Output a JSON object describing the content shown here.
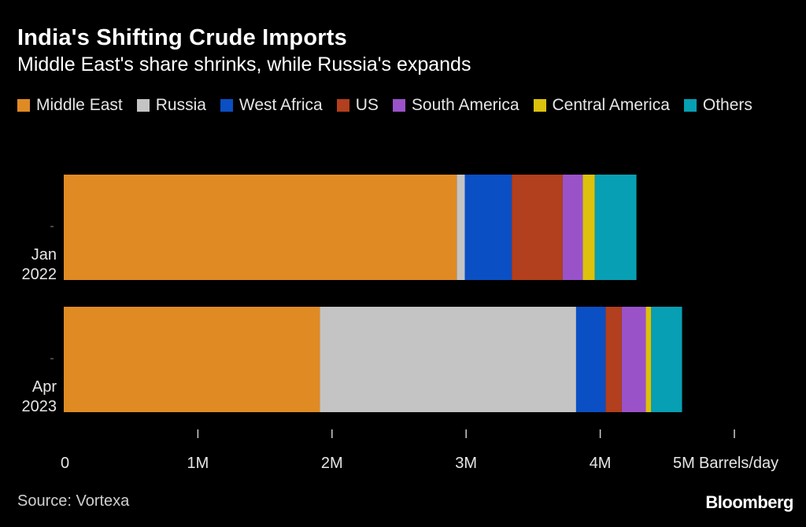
{
  "title": "India's Shifting Crude Imports",
  "subtitle": "Middle East's share shrinks, while Russia's expands",
  "legend": [
    {
      "name": "Middle East",
      "color": "#e08a24"
    },
    {
      "name": "Russia",
      "color": "#c4c4c4"
    },
    {
      "name": "West Africa",
      "color": "#0a4fc4"
    },
    {
      "name": "US",
      "color": "#b23f1d"
    },
    {
      "name": "South America",
      "color": "#9a52c9"
    },
    {
      "name": "Central America",
      "color": "#dcc20c"
    },
    {
      "name": "Others",
      "color": "#079fb3"
    }
  ],
  "source": "Source: Vortexa",
  "logo": "Bloomberg",
  "chart_data": {
    "type": "bar",
    "orientation": "horizontal",
    "stacked": true,
    "categories": [
      {
        "line1": "Jan",
        "line2": "2022"
      },
      {
        "line1": "Apr",
        "line2": "2023"
      }
    ],
    "series": [
      {
        "name": "Middle East",
        "color": "#e08a24",
        "values": [
          2.93,
          1.91
        ]
      },
      {
        "name": "Russia",
        "color": "#c4c4c4",
        "values": [
          0.06,
          1.91
        ]
      },
      {
        "name": "West Africa",
        "color": "#0a4fc4",
        "values": [
          0.35,
          0.22
        ]
      },
      {
        "name": "US",
        "color": "#b23f1d",
        "values": [
          0.38,
          0.12
        ]
      },
      {
        "name": "South America",
        "color": "#9a52c9",
        "values": [
          0.15,
          0.18
        ]
      },
      {
        "name": "Central America",
        "color": "#dcc20c",
        "values": [
          0.09,
          0.04
        ]
      },
      {
        "name": "Others",
        "color": "#079fb3",
        "values": [
          0.31,
          0.23
        ]
      }
    ],
    "xlim": [
      0,
      5
    ],
    "xticks": [
      {
        "value": 0,
        "label": "0"
      },
      {
        "value": 1,
        "label": "1M"
      },
      {
        "value": 2,
        "label": "2M"
      },
      {
        "value": 3,
        "label": "3M"
      },
      {
        "value": 4,
        "label": "4M"
      },
      {
        "value": 5,
        "label": "5M"
      }
    ],
    "xunit": "Barrels/day",
    "grid": false,
    "legend_position": "top"
  }
}
